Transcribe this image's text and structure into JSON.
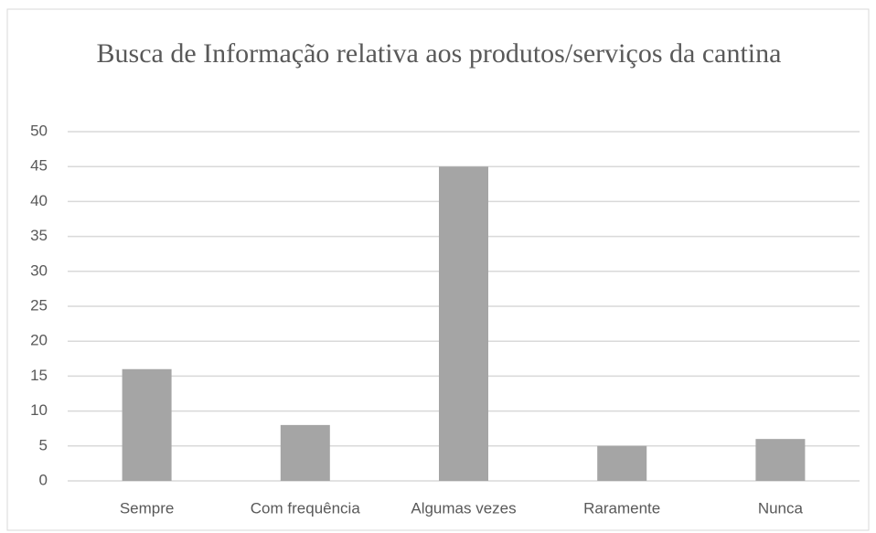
{
  "chart_data": {
    "type": "bar",
    "title": "Busca de Informação relativa aos produtos/serviços da cantina",
    "categories": [
      "Sempre",
      "Com frequência",
      "Algumas vezes",
      "Raramente",
      "Nunca"
    ],
    "values": [
      16,
      8,
      45,
      5,
      6
    ],
    "color": "#a5a5a5",
    "ylim": [
      0,
      50
    ],
    "yticks": [
      0,
      5,
      10,
      15,
      20,
      25,
      30,
      35,
      40,
      45,
      50
    ],
    "grid": true
  }
}
